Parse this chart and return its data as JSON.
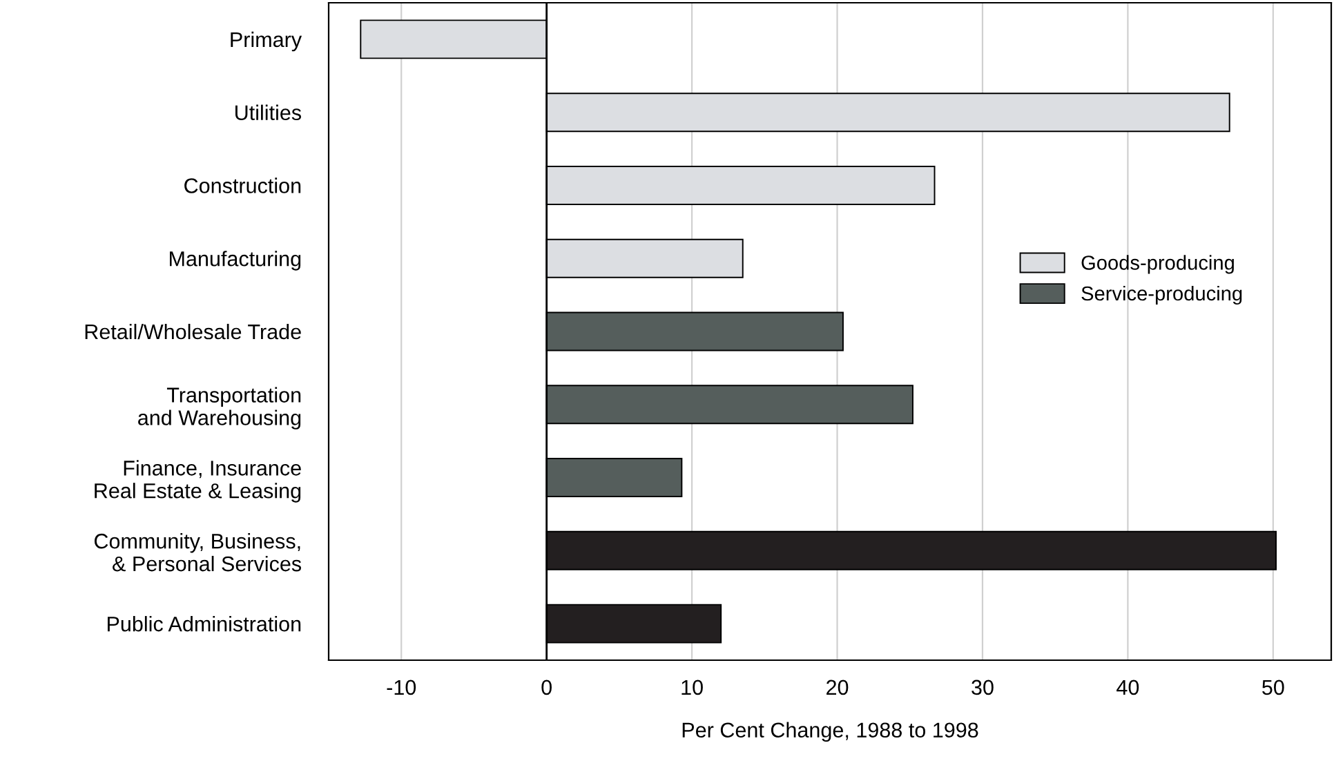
{
  "chart_data": {
    "type": "bar",
    "orientation": "horizontal",
    "xlabel": "Per Cent Change, 1988 to 1998",
    "categories": [
      "Primary",
      "Utilities",
      "Construction",
      "Manufacturing",
      "Retail/Wholesale Trade",
      "Transportation\nand Warehousing",
      "Finance, Insurance\nReal Estate & Leasing",
      "Community, Business,\n& Personal Services",
      "Public Administration"
    ],
    "series": [
      {
        "name": "Goods-producing",
        "color": "#dcdee2",
        "values": [
          -12.8,
          47.0,
          26.7,
          13.5,
          null,
          null,
          null,
          null,
          null
        ]
      },
      {
        "name": "Service-producing",
        "color": "#555e5c",
        "colors": [
          "#555e5c",
          "#555e5c",
          "#555e5c",
          "#555e5c",
          "#555e5c",
          "#555e5c",
          "#555e5c",
          "#231f20",
          "#231f20"
        ],
        "values": [
          null,
          null,
          null,
          null,
          20.4,
          25.2,
          9.3,
          50.2,
          12.0
        ]
      }
    ],
    "xlim": [
      -15,
      54
    ],
    "xticks": [
      -10,
      0,
      10,
      20,
      30,
      40,
      50
    ],
    "ref_lines": [
      {
        "axis": "x",
        "value": 0,
        "color": "#000000"
      }
    ],
    "grid": "x",
    "legend": "right"
  }
}
